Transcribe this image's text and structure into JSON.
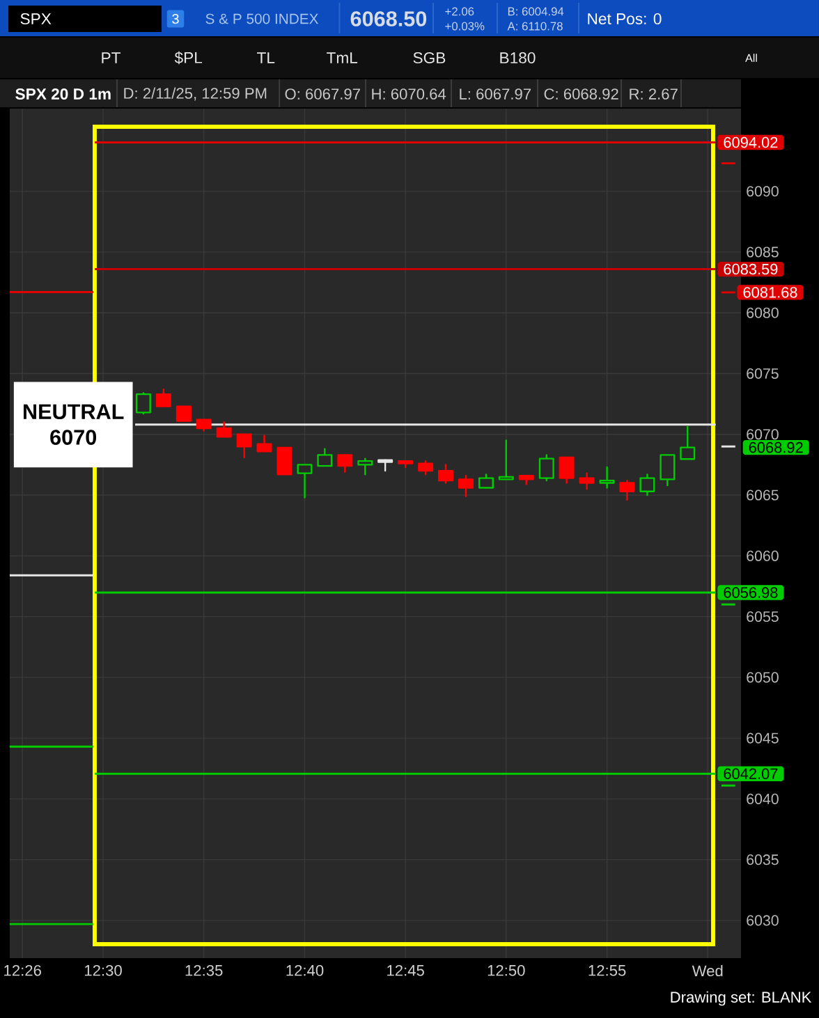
{
  "chart_data": {
    "type": "candlestick",
    "title": "SPX 20 D 1m",
    "subtitle": "D: 2/11/25, 12:59 PM",
    "annotations": [
      "SPX",
      "3",
      "S & P 500 INDEX",
      "6068.50",
      "+2.06",
      "+0.03%",
      "B: 6004.94",
      "A: 6110.78",
      "Net Pos: 0",
      "PT",
      "$PL",
      "TL",
      "TmL",
      "SGB",
      "B180",
      "All",
      "O: 6067.97",
      "H: 6070.64",
      "L: 6067.97",
      "C: 6068.92",
      "R: 2.67",
      "Drawing set: BLANK"
    ],
    "x": [
      12.5333,
      12.55,
      12.5667,
      12.5833,
      12.6,
      12.6167,
      12.6333,
      12.65,
      12.6667,
      12.6833,
      12.7,
      12.7167,
      12.7333,
      12.75,
      12.7667,
      12.7833,
      12.8,
      12.8167,
      12.8333,
      12.85,
      12.8667,
      12.8833,
      12.9,
      12.9167,
      12.9333,
      12.95,
      12.9667,
      12.9833
    ],
    "ohlc": [
      [
        6071.8,
        6073.4,
        6071.7,
        6073.3
      ],
      [
        6073.3,
        6073.7,
        6072.3,
        6072.3
      ],
      [
        6072.3,
        6072.3,
        6071.1,
        6071.1
      ],
      [
        6071.2,
        6071.2,
        6070.3,
        6070.5
      ],
      [
        6070.5,
        6071.0,
        6069.8,
        6069.8
      ],
      [
        6070.0,
        6070.0,
        6068.1,
        6069.0
      ],
      [
        6069.2,
        6069.9,
        6068.6,
        6068.6
      ],
      [
        6068.9,
        6068.9,
        6066.7,
        6066.7
      ],
      [
        6066.8,
        6067.5,
        6064.8,
        6067.5
      ],
      [
        6067.4,
        6068.8,
        6067.4,
        6068.3
      ],
      [
        6068.3,
        6068.3,
        6066.9,
        6067.4
      ],
      [
        6067.5,
        6068.0,
        6066.7,
        6067.8
      ],
      [
        6067.8,
        6067.9,
        6067.0,
        6067.8
      ],
      [
        6067.8,
        6067.8,
        6067.3,
        6067.6
      ],
      [
        6067.6,
        6067.8,
        6066.7,
        6067.0
      ],
      [
        6067.0,
        6067.5,
        6066.0,
        6066.2
      ],
      [
        6066.3,
        6066.6,
        6064.9,
        6065.6
      ],
      [
        6065.6,
        6066.7,
        6065.6,
        6066.4
      ],
      [
        6066.3,
        6069.5,
        6066.3,
        6066.5
      ],
      [
        6066.6,
        6066.6,
        6065.9,
        6066.3
      ],
      [
        6066.4,
        6068.3,
        6066.2,
        6068.0
      ],
      [
        6068.1,
        6068.1,
        6066.0,
        6066.4
      ],
      [
        6066.4,
        6066.8,
        6065.5,
        6066.0
      ],
      [
        6066.0,
        6067.3,
        6065.6,
        6066.2
      ],
      [
        6066.0,
        6066.2,
        6064.6,
        6065.3
      ],
      [
        6065.3,
        6066.7,
        6065.0,
        6066.4
      ],
      [
        6066.3,
        6068.3,
        6065.8,
        6068.3
      ],
      [
        6067.97,
        6070.64,
        6067.97,
        6068.92
      ]
    ],
    "colors": [
      "#00CC00",
      "#FF0000",
      "#FF0000",
      "#FF0000",
      "#FF0000",
      "#FF0000",
      "#FF0000",
      "#FF0000",
      "#00CC00",
      "#00CC00",
      "#FF0000",
      "#00CC00",
      "#E6E6E6",
      "#FF0000",
      "#FF0000",
      "#FF0000",
      "#FF0000",
      "#00CC00",
      "#00CC00",
      "#FF0000",
      "#00CC00",
      "#FF0000",
      "#FF0000",
      "#00CC00",
      "#FF0000",
      "#00CC00",
      "#00CC00",
      "#00CC00"
    ],
    "value_labels": [
      null,
      null,
      null,
      null,
      null,
      null,
      null,
      null,
      null,
      null,
      null,
      null,
      null,
      null,
      null,
      null,
      null,
      null,
      null,
      null,
      null,
      null,
      null,
      null,
      null,
      null,
      null,
      "6068.92"
    ],
    "series": [
      {
        "type": "line",
        "x": [
          12.4228,
          12.492
        ],
        "values": [
          6081.7,
          6081.7
        ],
        "color": "#E00000"
      },
      {
        "type": "line",
        "x": [
          12.4228,
          12.492
        ],
        "values": [
          6058.4,
          6058.4
        ],
        "color": "#E6E6E6"
      },
      {
        "type": "line",
        "x": [
          12.4228,
          12.492
        ],
        "values": [
          6044.3,
          6044.3
        ],
        "color": "#00CC00"
      },
      {
        "type": "line",
        "x": [
          12.4228,
          12.492
        ],
        "values": [
          6029.7,
          6029.7
        ],
        "color": "#00CC00"
      },
      {
        "type": "line",
        "x": [
          12.4932,
          13.0066
        ],
        "values": [
          6094.02,
          6094.02
        ],
        "color": "#E00000",
        "value_labels": [
          null,
          "6094.02"
        ]
      },
      {
        "type": "line",
        "x": [
          12.4932,
          13.0066
        ],
        "values": [
          6083.59,
          6083.59
        ],
        "color": "#C80000",
        "value_labels": [
          null,
          "6083.59"
        ]
      },
      {
        "type": "line",
        "name": "NEUTRAL 6070",
        "x": [
          12.5265,
          13.0066
        ],
        "values": [
          6070.8,
          6070.8
        ],
        "color": "#E6E6E6"
      },
      {
        "type": "line",
        "x": [
          12.4932,
          13.0066
        ],
        "values": [
          6056.98,
          6056.98
        ],
        "color": "#00CC00",
        "value_labels": [
          null,
          "6056.98"
        ]
      },
      {
        "type": "line",
        "x": [
          12.4932,
          13.0066
        ],
        "values": [
          6042.07,
          6042.07
        ],
        "color": "#00CC00",
        "value_labels": [
          null,
          "6042.07"
        ]
      },
      {
        "type": "line",
        "x": [
          13.0113,
          13.0228
        ],
        "values": [
          6092.3,
          6092.3
        ],
        "color": "#E00000"
      },
      {
        "type": "line",
        "x": [
          13.0113,
          13.0228
        ],
        "values": [
          6081.68,
          6081.68
        ],
        "color": "#E00000",
        "value_labels": [
          null,
          "6081.68"
        ]
      },
      {
        "type": "line",
        "x": [
          13.0113,
          13.0228
        ],
        "values": [
          6069.0,
          6069.0
        ],
        "color": "#E6E6E6"
      },
      {
        "type": "line",
        "x": [
          13.0113,
          13.0228
        ],
        "values": [
          6056.0,
          6056.0
        ],
        "color": "#00CC00"
      },
      {
        "type": "line",
        "x": [
          13.0113,
          13.0228
        ],
        "values": [
          6041.1,
          6041.1
        ],
        "color": "#00CC00"
      }
    ],
    "xlim": [
      12.4228,
      13.0275
    ],
    "ylim": [
      6026.9,
      6096.8
    ],
    "xticks": [
      {
        "value": 12.4333,
        "label": "12:26"
      },
      {
        "value": 12.5,
        "label": "12:30"
      },
      {
        "value": 12.5833,
        "label": "12:35"
      },
      {
        "value": 12.6667,
        "label": "12:40"
      },
      {
        "value": 12.75,
        "label": "12:45"
      },
      {
        "value": 12.8333,
        "label": "12:50"
      },
      {
        "value": 12.9167,
        "label": "12:55"
      },
      {
        "value": 13.0,
        "label": "Wed"
      }
    ],
    "yticks": [
      6030,
      6035,
      6040,
      6045,
      6050,
      6055,
      6060,
      6065,
      6070,
      6075,
      6080,
      6085,
      6090
    ],
    "grid": true
  }
}
